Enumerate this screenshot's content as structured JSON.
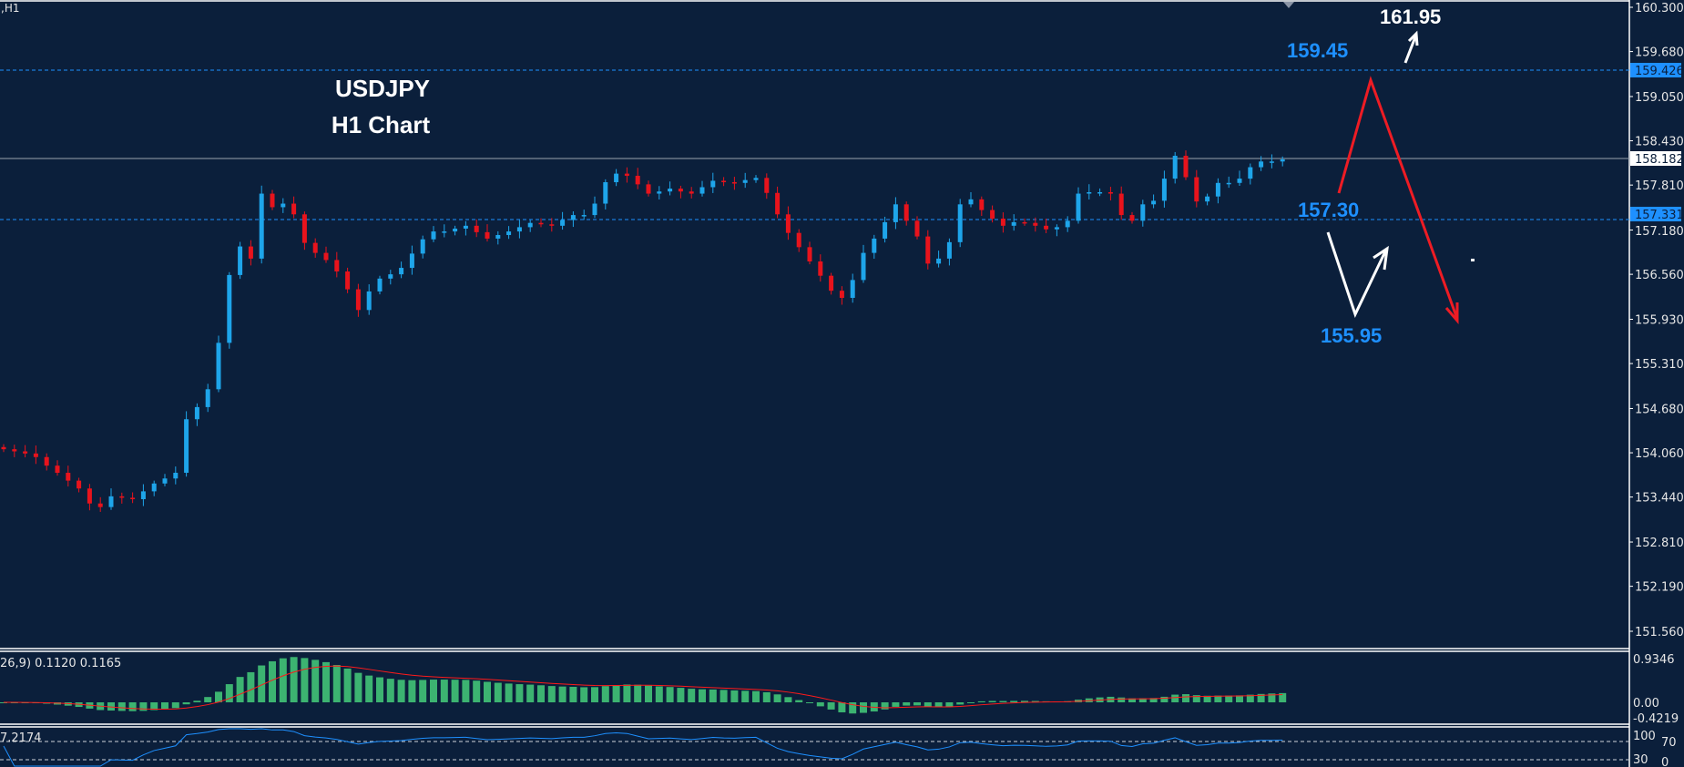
{
  "window": {
    "symbol_label": ",H1"
  },
  "chart_title": {
    "line1": "USDJPY",
    "line2": "H1 Chart"
  },
  "colors": {
    "background": "#0b1f3b",
    "bull": "#1ea5ea",
    "bear": "#e8131c",
    "level_line": "#1e90ff",
    "macd_hist": "#3cb371",
    "macd_signal": "#ff1a1a",
    "rsi_line": "#1e90ff",
    "annotation_blue": "#1e90ff"
  },
  "annotations": {
    "target_high": "161.95",
    "resistance": "159.45",
    "pivot": "157.30",
    "support": "155.95"
  },
  "price_tags": {
    "resistance_line": "159.426",
    "current_price": "158.182",
    "pivot_line": "157.331"
  },
  "indicators": {
    "macd_label": "26,9) 0.1120 0.1165",
    "macd_axis": [
      "0.9346",
      "0.00",
      "-0.4219"
    ],
    "rsi_label": "7.2174",
    "rsi_axis": [
      "100",
      "70",
      "30",
      "0"
    ]
  },
  "chart_data": {
    "type": "candlestick",
    "title": "USDJPY H1 Chart",
    "ylim": [
      151.56,
      160.3
    ],
    "yticks": [
      "160.300",
      "159.680",
      "159.050",
      "158.430",
      "157.810",
      "157.180",
      "156.560",
      "155.930",
      "155.310",
      "154.680",
      "154.060",
      "153.440",
      "152.810",
      "152.190",
      "151.560"
    ],
    "horizontal_levels": [
      159.426,
      158.182,
      157.331
    ],
    "closes": [
      154.11,
      154.08,
      154.05,
      154.0,
      153.88,
      153.78,
      153.67,
      153.56,
      153.35,
      153.3,
      153.45,
      153.43,
      153.41,
      153.52,
      153.63,
      153.7,
      153.78,
      154.53,
      154.7,
      154.95,
      155.6,
      156.55,
      156.95,
      156.78,
      157.69,
      157.5,
      157.55,
      157.4,
      157.0,
      156.86,
      156.76,
      156.6,
      156.35,
      156.06,
      156.32,
      156.5,
      156.56,
      156.65,
      156.85,
      157.05,
      157.16,
      157.16,
      157.2,
      157.24,
      157.15,
      157.06,
      157.11,
      157.16,
      157.22,
      157.28,
      157.26,
      157.24,
      157.32,
      157.39,
      157.39,
      157.55,
      157.85,
      157.97,
      157.94,
      157.82,
      157.69,
      157.72,
      157.76,
      157.72,
      157.69,
      157.78,
      157.87,
      157.85,
      157.84,
      157.88,
      157.91,
      157.7,
      157.4,
      157.14,
      156.94,
      156.74,
      156.54,
      156.33,
      156.23,
      156.48,
      156.86,
      157.06,
      157.29,
      157.54,
      157.31,
      157.09,
      156.71,
      156.78,
      157.01,
      157.54,
      157.61,
      157.46,
      157.34,
      157.24,
      157.29,
      157.28,
      157.24,
      157.19,
      157.22,
      157.31,
      157.69,
      157.71,
      157.71,
      157.69,
      157.39,
      157.31,
      157.54,
      157.59,
      157.9,
      158.22,
      157.92,
      157.58,
      157.65,
      157.84,
      157.84,
      157.9,
      158.06,
      158.14,
      158.14,
      158.17
    ]
  }
}
